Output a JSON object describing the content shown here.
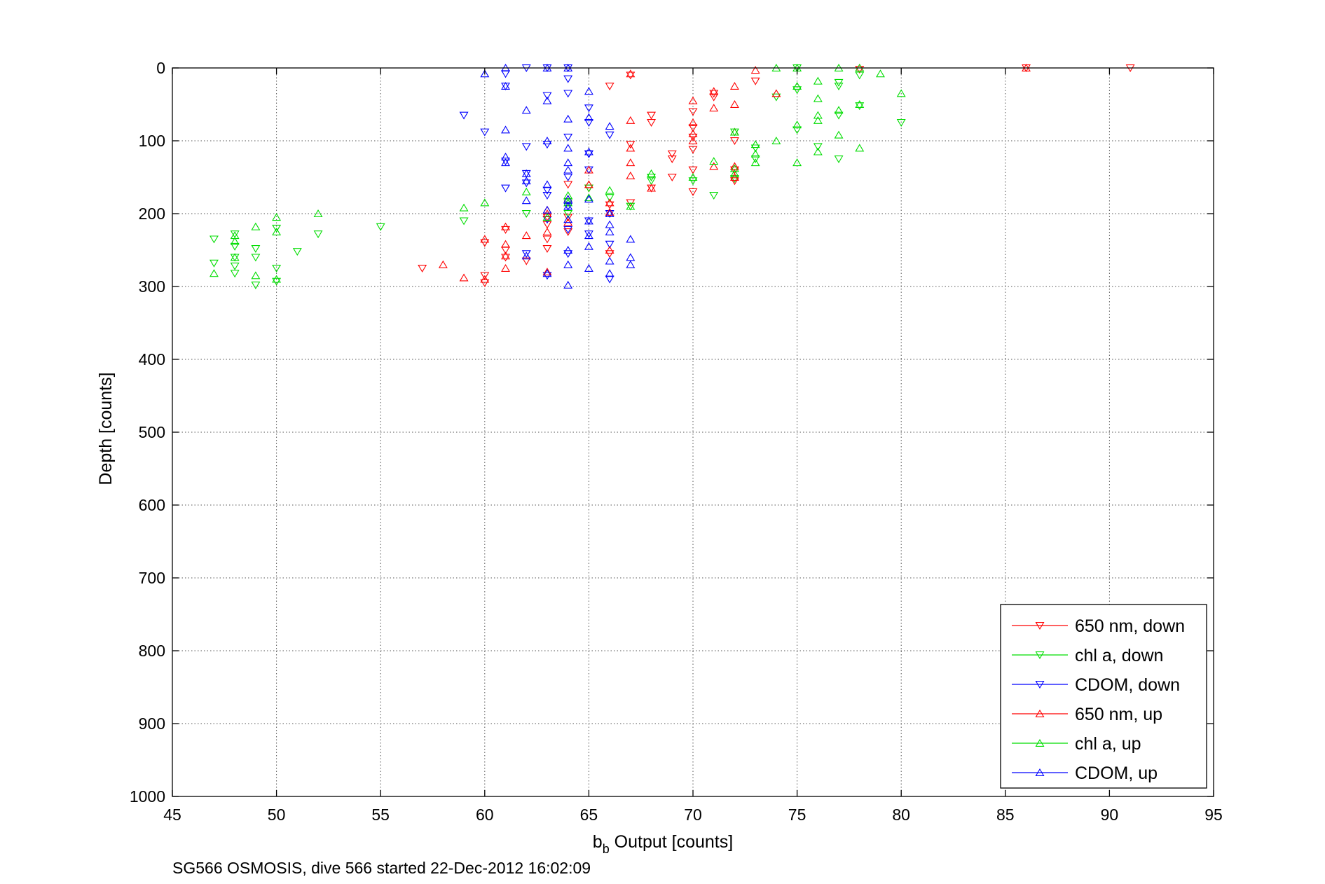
{
  "chart_data": {
    "type": "scatter",
    "title": "",
    "xlabel_main": "b",
    "xlabel_sub": "b",
    "xlabel_rest": " Output [counts]",
    "ylabel": "Depth [counts]",
    "footer": "SG566 OSMOSIS, dive 566 started 22-Dec-2012 16:02:09",
    "xlim": [
      45,
      95
    ],
    "ylim": [
      0,
      1000
    ],
    "y_reversed": true,
    "xticks": [
      "45",
      "50",
      "55",
      "60",
      "65",
      "70",
      "75",
      "80",
      "85",
      "90",
      "95"
    ],
    "yticks": [
      "0",
      "100",
      "200",
      "300",
      "400",
      "500",
      "600",
      "700",
      "800",
      "900",
      "1000"
    ],
    "grid": true,
    "legend_position": "bottom-right",
    "series": [
      {
        "name": "650 nm, down",
        "color": "#ff0000",
        "marker": "triangle-down",
        "points": [
          [
            91,
            0
          ],
          [
            86,
            0
          ],
          [
            78,
            2
          ],
          [
            73,
            18
          ],
          [
            71,
            35
          ],
          [
            67,
            10
          ],
          [
            66,
            25
          ],
          [
            68,
            65
          ],
          [
            68,
            75
          ],
          [
            70,
            60
          ],
          [
            70,
            82
          ],
          [
            70,
            95
          ],
          [
            70,
            112
          ],
          [
            69,
            118
          ],
          [
            69,
            125
          ],
          [
            67,
            105
          ],
          [
            70,
            140
          ],
          [
            69,
            150
          ],
          [
            70,
            170
          ],
          [
            68,
            165
          ],
          [
            67,
            185
          ],
          [
            66,
            188
          ],
          [
            65,
            165
          ],
          [
            64,
            160
          ],
          [
            64,
            185
          ],
          [
            64,
            205
          ],
          [
            64,
            225
          ],
          [
            63,
            215
          ],
          [
            63,
            248
          ],
          [
            62,
            265
          ],
          [
            61,
            250
          ],
          [
            61,
            260
          ],
          [
            61,
            222
          ],
          [
            60,
            240
          ],
          [
            60,
            295
          ],
          [
            60,
            285
          ],
          [
            57,
            275
          ],
          [
            63,
            205
          ],
          [
            63,
            235
          ],
          [
            66,
            255
          ],
          [
            72,
            100
          ],
          [
            72,
            155
          ],
          [
            71,
            40
          ],
          [
            72,
            140
          ]
        ]
      },
      {
        "name": "chl a, down",
        "color": "#00dd00",
        "marker": "triangle-down",
        "points": [
          [
            78,
            10
          ],
          [
            77,
            20
          ],
          [
            77,
            25
          ],
          [
            75,
            0
          ],
          [
            75,
            30
          ],
          [
            74,
            40
          ],
          [
            75,
            85
          ],
          [
            76,
            108
          ],
          [
            77,
            125
          ],
          [
            77,
            65
          ],
          [
            78,
            52
          ],
          [
            80,
            75
          ],
          [
            73,
            125
          ],
          [
            73,
            110
          ],
          [
            72,
            152
          ],
          [
            72,
            88
          ],
          [
            71,
            175
          ],
          [
            70,
            155
          ],
          [
            68,
            150
          ],
          [
            68,
            155
          ],
          [
            67,
            190
          ],
          [
            66,
            178
          ],
          [
            65,
            165
          ],
          [
            64,
            200
          ],
          [
            64,
            185
          ],
          [
            62,
            200
          ],
          [
            59,
            210
          ],
          [
            55,
            218
          ],
          [
            52,
            228
          ],
          [
            51,
            252
          ],
          [
            50,
            275
          ],
          [
            50,
            293
          ],
          [
            50,
            220
          ],
          [
            49,
            298
          ],
          [
            49,
            260
          ],
          [
            48,
            245
          ],
          [
            48,
            260
          ],
          [
            48,
            282
          ],
          [
            47,
            235
          ],
          [
            47,
            268
          ],
          [
            48,
            272
          ],
          [
            49,
            248
          ],
          [
            48,
            228
          ]
        ]
      },
      {
        "name": "CDOM, down",
        "color": "#0000ff",
        "marker": "triangle-down",
        "points": [
          [
            64,
            0
          ],
          [
            63,
            0
          ],
          [
            62,
            0
          ],
          [
            61,
            8
          ],
          [
            61,
            25
          ],
          [
            59,
            65
          ],
          [
            60,
            88
          ],
          [
            63,
            38
          ],
          [
            63,
            105
          ],
          [
            64,
            35
          ],
          [
            64,
            15
          ],
          [
            64,
            95
          ],
          [
            65,
            55
          ],
          [
            65,
            75
          ],
          [
            65,
            118
          ],
          [
            66,
            92
          ],
          [
            65,
            140
          ],
          [
            64,
            150
          ],
          [
            64,
            190
          ],
          [
            63,
            168
          ],
          [
            63,
            175
          ],
          [
            63,
            208
          ],
          [
            62,
            145
          ],
          [
            62,
            158
          ],
          [
            62,
            108
          ],
          [
            61,
            128
          ],
          [
            61,
            165
          ],
          [
            62,
            255
          ],
          [
            63,
            285
          ],
          [
            64,
            222
          ],
          [
            64,
            255
          ],
          [
            65,
            210
          ],
          [
            65,
            228
          ],
          [
            66,
            200
          ],
          [
            66,
            242
          ],
          [
            66,
            290
          ],
          [
            64,
            190
          ],
          [
            65,
            118
          ]
        ]
      },
      {
        "name": "650 nm, up",
        "color": "#ff0000",
        "marker": "triangle-up",
        "points": [
          [
            78,
            0
          ],
          [
            86,
            0
          ],
          [
            74,
            35
          ],
          [
            73,
            3
          ],
          [
            72,
            25
          ],
          [
            72,
            50
          ],
          [
            71,
            55
          ],
          [
            71,
            32
          ],
          [
            70,
            45
          ],
          [
            70,
            75
          ],
          [
            70,
            90
          ],
          [
            70,
            100
          ],
          [
            72,
            88
          ],
          [
            72,
            135
          ],
          [
            71,
            135
          ],
          [
            72,
            150
          ],
          [
            68,
            165
          ],
          [
            67,
            110
          ],
          [
            67,
            130
          ],
          [
            67,
            148
          ],
          [
            67,
            72
          ],
          [
            67,
            8
          ],
          [
            66,
            185
          ],
          [
            66,
            198
          ],
          [
            66,
            250
          ],
          [
            65,
            160
          ],
          [
            65,
            140
          ],
          [
            64,
            180
          ],
          [
            64,
            212
          ],
          [
            63,
            200
          ],
          [
            63,
            225
          ],
          [
            63,
            280
          ],
          [
            62,
            230
          ],
          [
            61,
            218
          ],
          [
            61,
            242
          ],
          [
            61,
            258
          ],
          [
            61,
            275
          ],
          [
            60,
            235
          ],
          [
            60,
            290
          ],
          [
            59,
            288
          ],
          [
            58,
            270
          ],
          [
            63,
            195
          ]
        ]
      },
      {
        "name": "chl a, up",
        "color": "#00dd00",
        "marker": "triangle-up",
        "points": [
          [
            79,
            8
          ],
          [
            78,
            0
          ],
          [
            77,
            0
          ],
          [
            75,
            0
          ],
          [
            74,
            0
          ],
          [
            76,
            18
          ],
          [
            76,
            42
          ],
          [
            76,
            65
          ],
          [
            76,
            72
          ],
          [
            77,
            92
          ],
          [
            78,
            110
          ],
          [
            78,
            50
          ],
          [
            77,
            58
          ],
          [
            80,
            35
          ],
          [
            76,
            115
          ],
          [
            75,
            25
          ],
          [
            75,
            78
          ],
          [
            75,
            130
          ],
          [
            74,
            100
          ],
          [
            73,
            105
          ],
          [
            73,
            130
          ],
          [
            73,
            118
          ],
          [
            72,
            138
          ],
          [
            72,
            145
          ],
          [
            71,
            128
          ],
          [
            70,
            150
          ],
          [
            72,
            88
          ],
          [
            68,
            145
          ],
          [
            67,
            190
          ],
          [
            66,
            168
          ],
          [
            65,
            178
          ],
          [
            64,
            185
          ],
          [
            64,
            175
          ],
          [
            63,
            205
          ],
          [
            62,
            170
          ],
          [
            60,
            185
          ],
          [
            59,
            192
          ],
          [
            52,
            200
          ],
          [
            50,
            205
          ],
          [
            50,
            225
          ],
          [
            49,
            218
          ],
          [
            49,
            285
          ],
          [
            48,
            238
          ],
          [
            48,
            260
          ],
          [
            48,
            230
          ],
          [
            47,
            282
          ],
          [
            50,
            290
          ]
        ]
      },
      {
        "name": "CDOM, up",
        "color": "#0000ff",
        "marker": "triangle-up",
        "points": [
          [
            64,
            0
          ],
          [
            63,
            0
          ],
          [
            61,
            0
          ],
          [
            60,
            8
          ],
          [
            61,
            25
          ],
          [
            62,
            58
          ],
          [
            61,
            85
          ],
          [
            63,
            45
          ],
          [
            63,
            100
          ],
          [
            64,
            70
          ],
          [
            64,
            110
          ],
          [
            64,
            130
          ],
          [
            65,
            32
          ],
          [
            65,
            68
          ],
          [
            65,
            115
          ],
          [
            66,
            80
          ],
          [
            64,
            140
          ],
          [
            64,
            190
          ],
          [
            63,
            160
          ],
          [
            63,
            195
          ],
          [
            62,
            145
          ],
          [
            62,
            155
          ],
          [
            62,
            182
          ],
          [
            61,
            122
          ],
          [
            61,
            130
          ],
          [
            62,
            258
          ],
          [
            63,
            282
          ],
          [
            64,
            208
          ],
          [
            64,
            250
          ],
          [
            64,
            270
          ],
          [
            64,
            298
          ],
          [
            65,
            210
          ],
          [
            65,
            230
          ],
          [
            65,
            245
          ],
          [
            65,
            275
          ],
          [
            65,
            180
          ],
          [
            66,
            215
          ],
          [
            66,
            225
          ],
          [
            66,
            265
          ],
          [
            66,
            282
          ],
          [
            67,
            235
          ],
          [
            67,
            260
          ],
          [
            67,
            270
          ],
          [
            66,
            200
          ],
          [
            64,
            180
          ]
        ]
      }
    ]
  }
}
